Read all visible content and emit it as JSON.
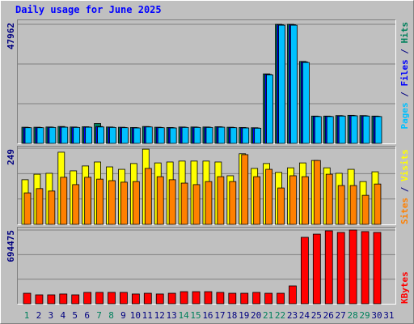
{
  "chart_data": [
    {
      "type": "bar",
      "title": "Daily usage for June 2025",
      "ylim": [
        0,
        47962
      ],
      "yticks": [
        47962
      ],
      "grid": true,
      "legend": "top-right",
      "legend_separator": " / ",
      "series": [
        {
          "name": "Hits",
          "color": "#00805c",
          "values": [
            6500,
            6500,
            6600,
            6800,
            6600,
            6700,
            8000,
            6600,
            6500,
            6400,
            6800,
            6500,
            6400,
            6600,
            6600,
            6600,
            6700,
            6500,
            6400,
            6300,
            28000,
            47962,
            47962,
            33000,
            11000,
            11000,
            11200,
            11300,
            11200,
            11000,
            null
          ]
        },
        {
          "name": "Files",
          "color": "#0000ff",
          "values": [
            6400,
            6400,
            6500,
            6600,
            6500,
            6600,
            6800,
            6500,
            6400,
            6300,
            6700,
            6400,
            6300,
            6500,
            6500,
            6500,
            6600,
            6400,
            6300,
            6200,
            27800,
            47800,
            47800,
            32800,
            10900,
            10900,
            11100,
            11200,
            11100,
            10900,
            null
          ]
        },
        {
          "name": "Pages",
          "color": "#00c0ff",
          "values": [
            6300,
            6300,
            6400,
            6500,
            6400,
            6500,
            6600,
            6400,
            6300,
            6200,
            6600,
            6300,
            6200,
            6400,
            6400,
            6400,
            6500,
            6300,
            6200,
            6100,
            27600,
            47600,
            47600,
            32600,
            10800,
            10800,
            11000,
            11100,
            11000,
            10800,
            null
          ]
        }
      ]
    },
    {
      "type": "bar",
      "ylim": [
        0,
        249
      ],
      "yticks": [
        249
      ],
      "grid": true,
      "legend": "bottom-right",
      "legend_separator": " / ",
      "series": [
        {
          "name": "Visits",
          "color": "#ffff00",
          "values": [
            146,
            164,
            167,
            236,
            175,
            191,
            204,
            188,
            180,
            199,
            246,
            201,
            204,
            207,
            207,
            207,
            204,
            159,
            231,
            183,
            199,
            170,
            185,
            201,
            209,
            185,
            167,
            180,
            140,
            172,
            null
          ]
        },
        {
          "name": "Sites",
          "color": "#ff8000",
          "values": [
            103,
            117,
            109,
            154,
            130,
            154,
            148,
            143,
            138,
            140,
            183,
            156,
            146,
            135,
            130,
            140,
            156,
            140,
            228,
            156,
            180,
            119,
            159,
            156,
            209,
            164,
            127,
            127,
            95,
            132,
            null
          ]
        }
      ]
    },
    {
      "type": "bar",
      "ylim": [
        0,
        694475
      ],
      "yticks": [
        694475
      ],
      "grid": true,
      "legend": "bottom-right",
      "legend_separator": " / ",
      "categories": [
        "1",
        "2",
        "3",
        "4",
        "5",
        "6",
        "7",
        "8",
        "9",
        "10",
        "11",
        "12",
        "13",
        "14",
        "15",
        "16",
        "17",
        "18",
        "19",
        "20",
        "21",
        "22",
        "23",
        "24",
        "25",
        "26",
        "27",
        "28",
        "29",
        "30",
        "31"
      ],
      "category_colors": [
        "#00805c",
        "#000080",
        "#000080",
        "#000080",
        "#000080",
        "#000080",
        "#00805c",
        "#00805c",
        "#000080",
        "#000080",
        "#000080",
        "#000080",
        "#000080",
        "#00805c",
        "#00805c",
        "#000080",
        "#000080",
        "#000080",
        "#000080",
        "#000080",
        "#00805c",
        "#00805c",
        "#000080",
        "#000080",
        "#000080",
        "#000080",
        "#000080",
        "#00805c",
        "#00805c",
        "#000080",
        "#000080"
      ],
      "series": [
        {
          "name": "KBytes",
          "color": "#ff0000",
          "values": [
            99000,
            84000,
            84000,
            92000,
            84000,
            107000,
            107000,
            107000,
            107000,
            92000,
            99000,
            92000,
            99000,
            114000,
            114000,
            114000,
            107000,
            99000,
            99000,
            107000,
            99000,
            99000,
            168000,
            626000,
            656000,
            687000,
            672000,
            694475,
            680000,
            672000,
            null
          ]
        }
      ]
    }
  ]
}
